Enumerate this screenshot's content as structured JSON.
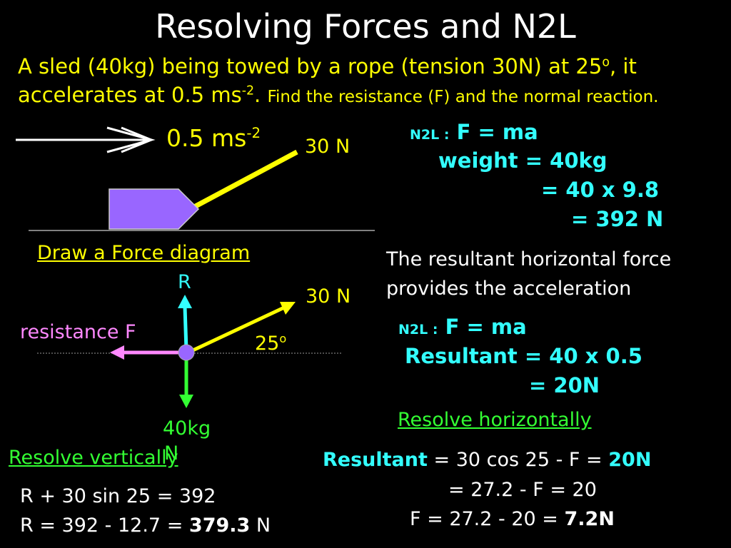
{
  "title": "Resolving Forces and N2L",
  "problem": {
    "line1_main": "A sled (40kg) being towed by a rope (tension 30N) at 25",
    "line1_sup": "o",
    "line1_end": ", it",
    "line2_main": "accelerates at 0.5 ms",
    "line2_sup": "-2",
    "line2_end": ".",
    "line2_small": "Find the resistance (F) and the normal reaction."
  },
  "sled_diagram": {
    "accel_value": "0.5 ms",
    "accel_sup": "-2",
    "tension_label": "30 N"
  },
  "force_diagram": {
    "heading": "Draw a Force diagram",
    "normal_label": "R",
    "tension_label": "30 N",
    "resistance_label": "resistance F",
    "angle_value": "25",
    "angle_sup": "o",
    "weight_line1": "40kg",
    "weight_line2": "N"
  },
  "n2l_weight": {
    "prefix": "N2L :",
    "equation": "F = ma",
    "line1": "weight = 40kg",
    "line2": "= 40 x 9.8",
    "line3": "= 392 N"
  },
  "resultant_note": {
    "line1": "The resultant horizontal force",
    "line2": "provides the acceleration"
  },
  "n2l_resultant": {
    "prefix": "N2L :",
    "equation": "F = ma",
    "line1": "Resultant = 40 x 0.5",
    "line2": "= 20N"
  },
  "horizontal": {
    "heading": "Resolve horizontally",
    "label": "Resultant",
    "eq1_mid": "= 30 cos 25 - F =",
    "eq1_val": "20N",
    "eq2": "= 27.2 - F = 20",
    "eq3_main": "F = 27.2 - 20 =",
    "eq3_val": "7.2N"
  },
  "vertical": {
    "heading": "Resolve vertically",
    "eq1": "R + 30 sin 25 = 392",
    "eq2_main": "R = 392 - 12.7 =",
    "eq2_val": "379.3",
    "eq2_unit": "N"
  },
  "colors": {
    "background": "#000000",
    "sled": "#9966ff",
    "rope": "#ffff00",
    "normal_arrow": "#33ffff",
    "weight_arrow": "#33ff33",
    "resistance_arrow": "#ff88ff",
    "point": "#9966ff"
  }
}
